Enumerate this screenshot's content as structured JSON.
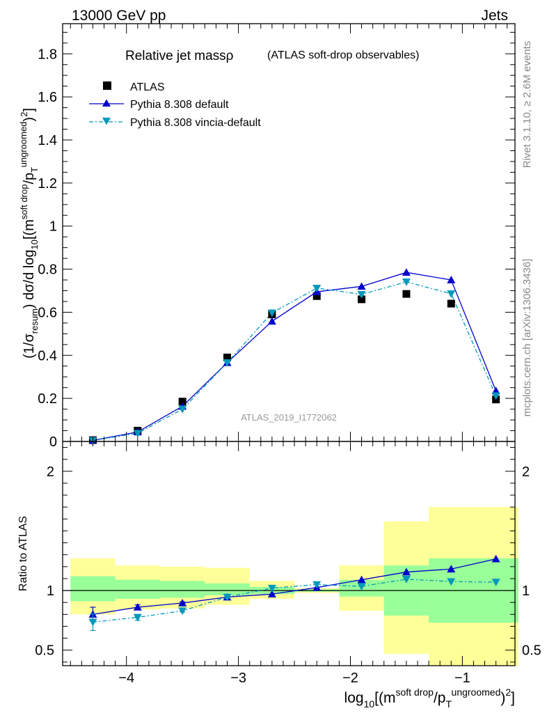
{
  "header": {
    "left": "13000 GeV pp",
    "right": "Jets"
  },
  "side": {
    "rivet": "Rivet 3.1.10, ≥ 2.6M events",
    "mcplots": "mcplots.cern.ch [arXiv:1306.3436]"
  },
  "title": {
    "main": "Relative jet massρ",
    "sub": "(ATLAS soft-drop observables)"
  },
  "watermark": "ATLAS_2019_I1772062",
  "axes": {
    "main_ylabel": "(1/σresum) dσ/d log10[(m^soft drop/pT^ungroomed)2]",
    "ratio_ylabel": "Ratio to ATLAS",
    "xlabel": "log10[(m^soft drop/pT^ungroomed)2]"
  },
  "legend": [
    {
      "label": "ATLAS",
      "marker": "square",
      "color": "#000000"
    },
    {
      "label": "Pythia 8.308 default",
      "marker": "triangle-up",
      "color": "#0000cc"
    },
    {
      "label": "Pythia 8.308 vincia-default",
      "marker": "triangle-down",
      "color": "#0099bb"
    }
  ],
  "chart_data": {
    "type": "line",
    "x_range": [
      -4.57,
      -0.53
    ],
    "main": {
      "y_range": [
        0,
        1.94
      ],
      "y_ticks": [
        0,
        0.2,
        0.4,
        0.6,
        0.8,
        1,
        1.2,
        1.4,
        1.6,
        1.8
      ],
      "y_tick_labels": [
        "0",
        "0.2",
        "0.4",
        "0.6",
        "0.8",
        "1",
        "1.2",
        "1.4",
        "1.6",
        "1.8"
      ]
    },
    "ratio": {
      "y_range": [
        0.37,
        2.25
      ],
      "y_ticks": [
        0.5,
        1,
        2
      ],
      "y_tick_labels": [
        "0.5",
        "1",
        "2"
      ]
    },
    "x_ticks": [
      -4,
      -3,
      -2,
      -1
    ],
    "x_tick_labels": [
      "−4",
      "−3",
      "−2",
      "−1"
    ],
    "bins": [
      {
        "lo": -4.5,
        "hi": -4.1
      },
      {
        "lo": -4.1,
        "hi": -3.7
      },
      {
        "lo": -3.7,
        "hi": -3.3
      },
      {
        "lo": -3.3,
        "hi": -2.9
      },
      {
        "lo": -2.9,
        "hi": -2.5
      },
      {
        "lo": -2.5,
        "hi": -2.1
      },
      {
        "lo": -2.1,
        "hi": -1.7
      },
      {
        "lo": -1.7,
        "hi": -1.3
      },
      {
        "lo": -1.3,
        "hi": -0.9
      },
      {
        "lo": -0.9,
        "hi": -0.5
      }
    ],
    "x": [
      -4.3,
      -3.9,
      -3.5,
      -3.1,
      -2.7,
      -2.3,
      -1.9,
      -1.5,
      -1.1,
      -0.7
    ],
    "series": [
      {
        "name": "ATLAS",
        "values": [
          0.006,
          0.05,
          0.185,
          0.39,
          0.59,
          0.675,
          0.66,
          0.685,
          0.64,
          0.195
        ]
      },
      {
        "name": "Pythia 8.308 default",
        "values": [
          0.005,
          0.044,
          0.163,
          0.366,
          0.558,
          0.695,
          0.72,
          0.785,
          0.75,
          0.235
        ]
      },
      {
        "name": "Pythia 8.308 vincia-default",
        "values": [
          0.0045,
          0.038,
          0.15,
          0.366,
          0.597,
          0.712,
          0.683,
          0.741,
          0.686,
          0.212
        ]
      }
    ],
    "ratio_series": [
      {
        "name": "Pythia 8.308 default",
        "values": [
          0.8,
          0.86,
          0.895,
          0.945,
          0.97,
          1.025,
          1.09,
          1.155,
          1.18,
          1.265
        ],
        "errors": [
          0.06,
          0.02,
          0.01,
          0.01,
          0.005,
          0.005,
          0.005,
          0.005,
          0.005,
          0.005
        ]
      },
      {
        "name": "Pythia 8.308 vincia-default",
        "values": [
          0.735,
          0.775,
          0.83,
          0.945,
          1.02,
          1.05,
          1.035,
          1.095,
          1.075,
          1.07
        ],
        "errors": [
          0.07,
          0.025,
          0.01,
          0.01,
          0.005,
          0.005,
          0.005,
          0.005,
          0.005,
          0.005
        ]
      }
    ],
    "bands": {
      "green": [
        [
          0.91,
          1.12
        ],
        [
          0.93,
          1.09
        ],
        [
          0.94,
          1.08
        ],
        [
          0.96,
          1.06
        ],
        [
          0.97,
          1.03
        ],
        [
          0.99,
          1.01
        ],
        [
          0.95,
          1.09
        ],
        [
          0.79,
          1.21
        ],
        [
          0.73,
          1.27
        ],
        [
          0.73,
          1.27
        ]
      ],
      "yellow": [
        [
          0.8,
          1.27
        ],
        [
          0.84,
          1.21
        ],
        [
          0.85,
          1.2
        ],
        [
          0.88,
          1.19
        ],
        [
          0.93,
          1.08
        ],
        [
          0.98,
          1.02
        ],
        [
          0.83,
          1.21
        ],
        [
          0.47,
          1.58
        ],
        [
          0.3,
          1.7
        ],
        [
          0.3,
          1.7
        ]
      ],
      "colors": {
        "green": "#99ff99",
        "yellow": "#ffff99"
      }
    }
  }
}
